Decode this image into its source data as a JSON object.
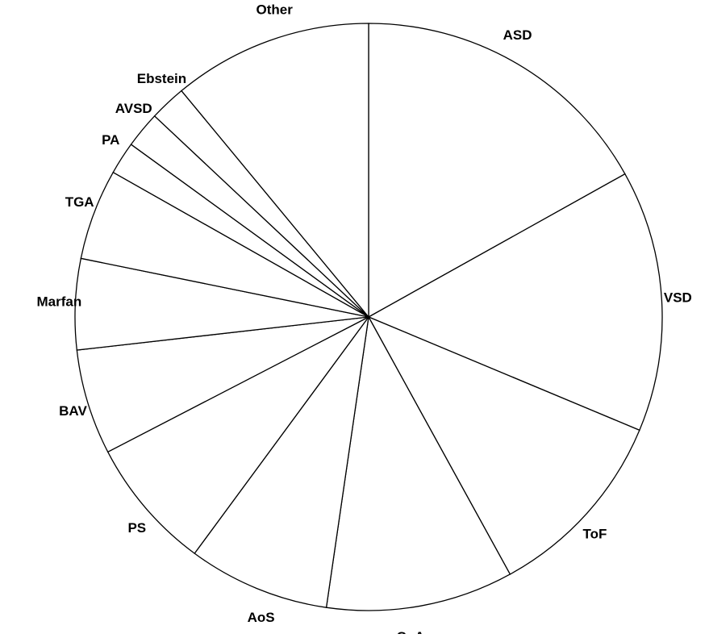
{
  "chart_data": {
    "type": "pie",
    "categories": [
      "ASD",
      "VSD",
      "ToF",
      "CoA",
      "AoS",
      "PS",
      "BAV",
      "Marfan",
      "TGA",
      "PA",
      "AVSD",
      "Ebstein",
      "Other"
    ],
    "values": [
      16.9,
      14.4,
      10.7,
      10.3,
      7.8,
      7.3,
      5.8,
      5.0,
      5.0,
      1.8,
      2.0,
      2.0,
      11.0
    ],
    "color": "#ffffff",
    "edgecolor": "#000000"
  }
}
